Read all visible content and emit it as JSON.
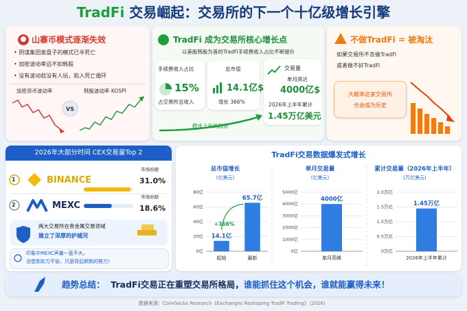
{
  "header": {
    "title_accent": "TradFi",
    "title_rest": "交易崛起：交易所的下一个十亿级增长引擎"
  },
  "panel1": {
    "title": "山寨币模式逐渐失效",
    "bullets": [
      "阴谋集团发盘子的模式已半死亡",
      "加密波动率远不如韩股",
      "没有波动就没有人玩，陷入死亡循环"
    ],
    "left_label": "加密货币波动率",
    "vs": "VS",
    "right_label": "韩股波动率 KOSPI"
  },
  "panel2": {
    "title": "TradFi 成为交易所核心增长点",
    "subtitle": "以美股韩股为首的TradFi手续费收入占比不断提升",
    "cards": [
      {
        "title": "手续费收入占比",
        "value": "15%",
        "caption": "占交易所总收入"
      },
      {
        "title": "总市值",
        "value": "14.1亿$",
        "caption": "增长 366%"
      },
      {
        "title": "交易量",
        "note": "单月高达",
        "value": "4000亿$",
        "caption": "2026年上半年累计",
        "value2": "1.45万亿美元"
      }
    ],
    "trend": "稳步上升的趋势"
  },
  "panel3": {
    "title": "不做TradFi = 被淘汰",
    "lines": [
      "如果交易所不去做TradFi",
      "或者做不好TradFi"
    ],
    "callout": [
      "大概率这家交易所",
      "也会成为历史"
    ]
  },
  "ranking": {
    "title": "2026年大部分时间 CEX交易量Top 2",
    "items": [
      {
        "rank": "1",
        "name": "BINANCE",
        "share_title": "市场份额"
      },
      {
        "rank": "2",
        "name": "MEXC",
        "share_title": "市场份额"
      }
    ],
    "values": [
      31.0,
      18.6
    ],
    "value_labels": [
      "31.0%",
      "18.6%"
    ],
    "note": [
      "两大交易所在贵金属交易领域",
      "建立了深厚的护城河"
    ],
    "tip": [
      "印象中MEXC声量一直不大，",
      "没想到实力不俗，只是背后默默的努力！"
    ]
  },
  "charts_title": "TradFi交易数据爆发式增长",
  "chart_data": [
    {
      "type": "bar",
      "title": "总市值增长",
      "unit": "(亿美元)",
      "categories": [
        "起始",
        "最新"
      ],
      "values": [
        14.1,
        65.7
      ],
      "value_labels": [
        "14.1亿",
        "65.7亿"
      ],
      "color": "#2f7de1",
      "annotation": "+366%",
      "ylim": [
        0,
        80
      ],
      "yticks": [
        {
          "value": 0,
          "label": "0亿"
        },
        {
          "value": 20,
          "label": "20亿"
        },
        {
          "value": 40,
          "label": "40亿"
        },
        {
          "value": 60,
          "label": "60亿"
        },
        {
          "value": 80,
          "label": "80亿"
        }
      ],
      "grid": true
    },
    {
      "type": "bar",
      "title": "单月交易量",
      "unit": "(亿美元)",
      "categories": [
        "单月高峰"
      ],
      "values": [
        4000
      ],
      "value_labels": [
        "4000亿"
      ],
      "color": "#2f7de1",
      "ylim": [
        0,
        5000
      ],
      "yticks": [
        {
          "value": 0,
          "label": "0亿"
        },
        {
          "value": 1000,
          "label": "1000亿"
        },
        {
          "value": 2000,
          "label": "2000亿"
        },
        {
          "value": 3000,
          "label": "3000亿"
        },
        {
          "value": 4000,
          "label": "4000亿"
        },
        {
          "value": 5000,
          "label": "5000亿"
        }
      ],
      "grid": true
    },
    {
      "type": "bar",
      "title": "累计交易量（2026年上半年）",
      "unit": "(万亿美元)",
      "categories": [
        "2026年上半年累计"
      ],
      "values": [
        1.45
      ],
      "value_labels": [
        "1.45万亿"
      ],
      "color": "#2f7de1",
      "ylim": [
        0,
        2
      ],
      "yticks": [
        {
          "value": 0,
          "label": "0万亿"
        },
        {
          "value": 0.5,
          "label": "0.5万亿"
        },
        {
          "value": 1,
          "label": "1.0万亿"
        },
        {
          "value": 1.5,
          "label": "1.5万亿"
        },
        {
          "value": 2,
          "label": "2.0万亿"
        }
      ],
      "grid": true
    }
  ],
  "summary": {
    "label": "趋势总结：",
    "text": "TradFi交易正在重塑交易所格局，",
    "highlight": "谁能抓住这个机会，谁就能赢得未来！"
  },
  "source": "数据来源：CoinGecko Research《Exchanges Reshaping TradFi Trading》（2026）"
}
